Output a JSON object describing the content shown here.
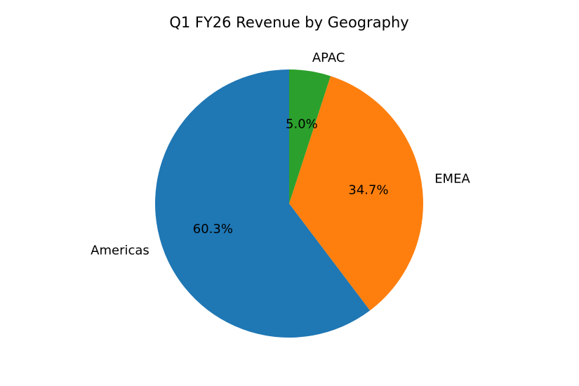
{
  "chart_data": {
    "type": "pie",
    "title": "Q1 FY26 Revenue by Geography",
    "start_angle_deg": 90,
    "direction": "counterclockwise",
    "slices": [
      {
        "label": "Americas",
        "value": 60.3,
        "pct_label": "60.3%",
        "color": "#1f77b4"
      },
      {
        "label": "EMEA",
        "value": 34.7,
        "pct_label": "34.7%",
        "color": "#ff7f0e"
      },
      {
        "label": "APAC",
        "value": 5.0,
        "pct_label": "5.0%",
        "color": "#2ca02c"
      }
    ],
    "legend": "none"
  }
}
